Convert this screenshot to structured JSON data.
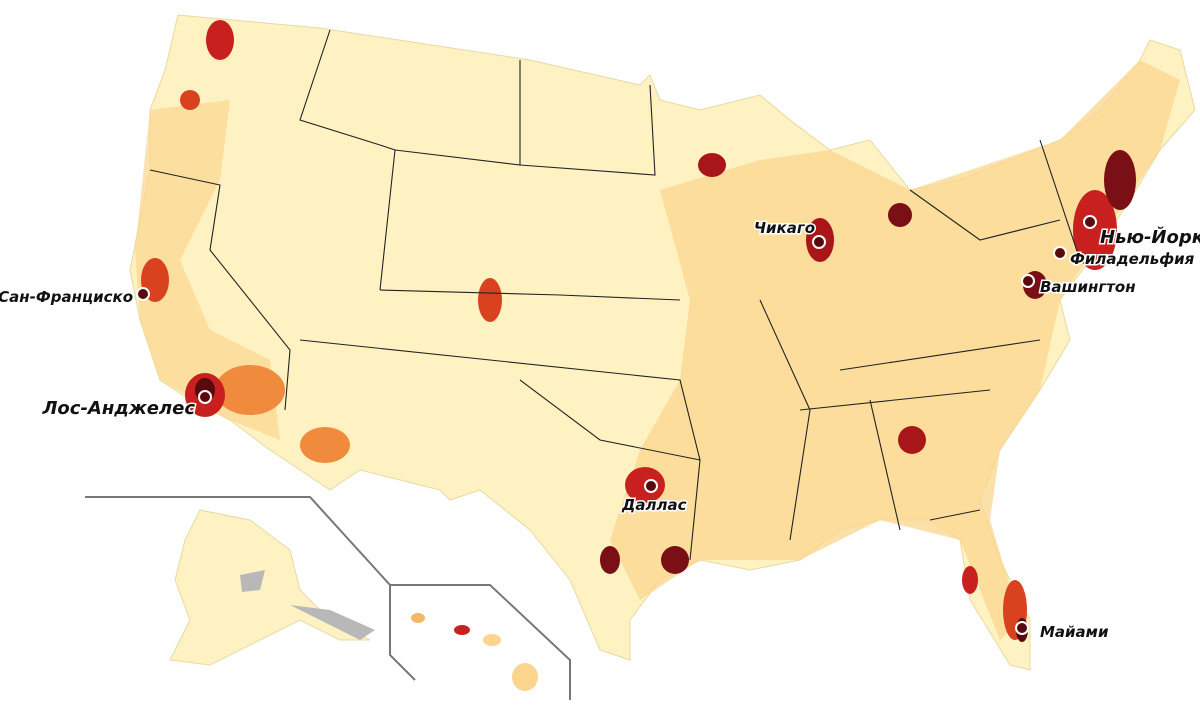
{
  "cities": [
    {
      "label": "Сан-Франциско"
    },
    {
      "label": "Лос-Анджелес"
    },
    {
      "label": "Чикаго"
    },
    {
      "label": "Нью-Йорк"
    },
    {
      "label": "Филадельфия"
    },
    {
      "label": "Вашингтон"
    },
    {
      "label": "Даллас"
    },
    {
      "label": "Майами"
    }
  ]
}
